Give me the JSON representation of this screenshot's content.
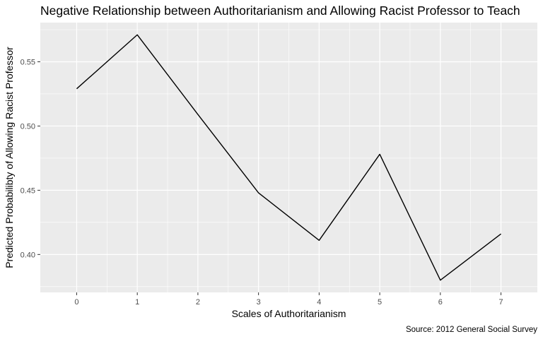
{
  "chart_data": {
    "type": "line",
    "title": "Negative Relationship between Authoritarianism and Allowing Racist Professor to Teach",
    "xlabel": "Scales of Authoritarianism",
    "ylabel": "Predicted Probabilibty of Allowing Racist Professor",
    "caption": "Source: 2012 General Social Survey",
    "x": [
      0,
      1,
      2,
      3,
      4,
      5,
      6,
      7
    ],
    "y": [
      0.529,
      0.571,
      0.509,
      0.448,
      0.411,
      0.478,
      0.38,
      0.416
    ],
    "x_ticks": [
      0,
      1,
      2,
      3,
      4,
      5,
      6,
      7
    ],
    "x_tick_labels": [
      "0",
      "1",
      "2",
      "3",
      "4",
      "5",
      "6",
      "7"
    ],
    "y_ticks": [
      0.4,
      0.45,
      0.5,
      0.55
    ],
    "y_tick_labels": [
      "0.40",
      "0.45",
      "0.50",
      "0.55"
    ],
    "xlim": [
      -0.6,
      7.6
    ],
    "ylim": [
      0.3705,
      0.5805
    ],
    "grid": true,
    "colors": {
      "panel_background": "#ebebeb",
      "grid": "#ffffff",
      "line": "#000000",
      "tick_label": "#4d4d4d"
    }
  }
}
